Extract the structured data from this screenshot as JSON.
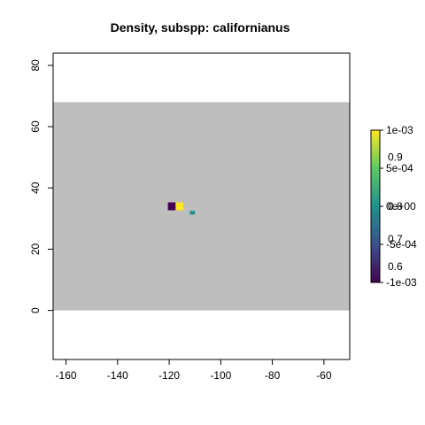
{
  "chart_data": {
    "type": "heatmap",
    "title": "Density, subspp: californianus",
    "xlabel": "",
    "ylabel": "",
    "xlim": [
      -165,
      -50
    ],
    "ylim": [
      -16,
      84
    ],
    "x_ticks": [
      "-160",
      "-140",
      "-120",
      "-100",
      "-80",
      "-60"
    ],
    "y_ticks": [
      "0",
      "20",
      "40",
      "60",
      "80"
    ],
    "extent_band": {
      "y_min": 0,
      "y_max": 68,
      "color": "#bebebe"
    },
    "cells": [
      {
        "x": -119,
        "y": 34,
        "value": -0.001,
        "color": "#440154"
      },
      {
        "x": -116,
        "y": 34,
        "value": 0.001,
        "color": "#fde725"
      },
      {
        "x": -111,
        "y": 32,
        "value": 0.0,
        "color": "#21908c"
      }
    ],
    "colorbar": {
      "min": -0.001,
      "max": 0.001,
      "colors": [
        "#440154",
        "#3b528b",
        "#21908c",
        "#5dc863",
        "#fde725"
      ],
      "right_labels": [
        "1e-03",
        "5e-04",
        "0e+00",
        "-5e-04",
        "-1e-03"
      ],
      "right_values": [
        0.001,
        0.0005,
        0.0,
        -0.0005,
        -0.001
      ],
      "overlay_labels": [
        "0.9",
        "0.8",
        "0.7",
        "0.6"
      ],
      "overlay_values": [
        0.00075,
        0.0,
        -0.00043,
        -0.00077
      ]
    },
    "grid": false,
    "legend": "right"
  }
}
